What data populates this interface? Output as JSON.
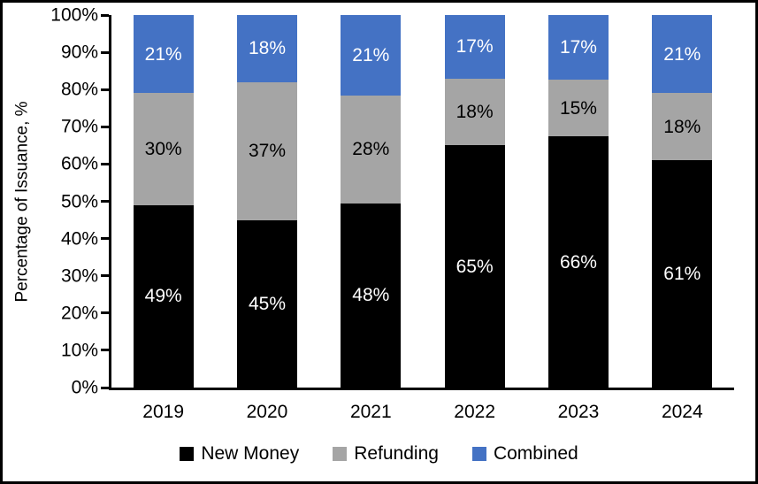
{
  "chart_data": {
    "type": "bar",
    "stacked": true,
    "title": "",
    "xlabel": "",
    "ylabel": "Percentage of Issuance, %",
    "categories": [
      "2019",
      "2020",
      "2021",
      "2022",
      "2023",
      "2024"
    ],
    "series": [
      {
        "name": "New Money",
        "color": "#000000",
        "label_color": "#FFFFFF",
        "values": [
          49,
          45,
          48,
          65,
          66,
          61
        ]
      },
      {
        "name": "Refunding",
        "color": "#A5A5A5",
        "label_color": "#000000",
        "values": [
          30,
          37,
          28,
          18,
          15,
          18
        ]
      },
      {
        "name": "Combined",
        "color": "#4472C4",
        "label_color": "#FFFFFF",
        "values": [
          21,
          18,
          21,
          17,
          17,
          21
        ]
      }
    ],
    "value_suffix": "%",
    "ylim": [
      0,
      100
    ],
    "yticks": [
      "0%",
      "10%",
      "20%",
      "30%",
      "40%",
      "50%",
      "60%",
      "70%",
      "80%",
      "90%",
      "100%"
    ],
    "grid": false,
    "legend_position": "bottom",
    "colors": {
      "axis": "#000000",
      "background": "#FFFFFF",
      "border": "#000000"
    }
  }
}
